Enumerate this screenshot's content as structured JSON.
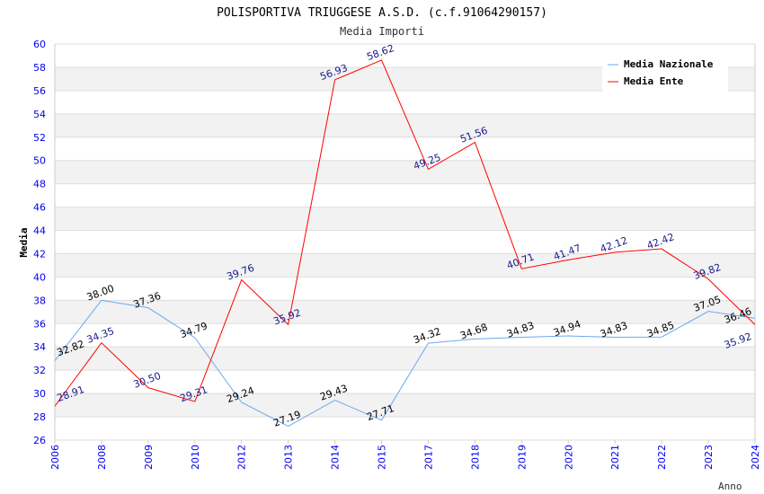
{
  "chart_data": {
    "type": "line",
    "title": "POLISPORTIVA TRIUGGESE A.S.D. (c.f.91064290157)",
    "subtitle": "Media Importi",
    "xlabel": "Anno",
    "ylabel": "Media",
    "ylim": [
      26,
      60
    ],
    "yticks": [
      "26",
      "28",
      "30",
      "32",
      "34",
      "36",
      "38",
      "40",
      "42",
      "44",
      "46",
      "48",
      "50",
      "52",
      "54",
      "56",
      "58",
      "60"
    ],
    "categories": [
      "2006",
      "2008",
      "2009",
      "2010",
      "2012",
      "2013",
      "2014",
      "2015",
      "2017",
      "2018",
      "2019",
      "2020",
      "2021",
      "2022",
      "2023",
      "2024"
    ],
    "legend_position": "top-right",
    "series": [
      {
        "name": "Media Nazionale",
        "color": "#6aaaf0",
        "label_color": "#000000",
        "values": [
          32.82,
          38.0,
          37.36,
          34.79,
          29.24,
          27.19,
          29.43,
          27.71,
          34.32,
          34.68,
          34.83,
          34.94,
          34.83,
          34.85,
          37.05,
          36.46
        ],
        "labels": [
          "32.82",
          "38.00",
          "37.36",
          "34.79",
          "29.24",
          "27.19",
          "29.43",
          "27.71",
          "34.32",
          "34.68",
          "34.83",
          "34.94",
          "34.83",
          "34.85",
          "37.05",
          "36.46"
        ]
      },
      {
        "name": "Media Ente",
        "color": "#ff0000",
        "label_color": "#1a1a8c",
        "values": [
          28.91,
          34.35,
          30.5,
          29.31,
          39.76,
          35.92,
          56.93,
          58.62,
          49.25,
          51.56,
          40.71,
          41.47,
          42.12,
          42.42,
          39.82,
          35.92
        ],
        "labels": [
          "28.91",
          "34.35",
          "30.50",
          "29.31",
          "39.76",
          "35.92",
          "56.93",
          "58.62",
          "49.25",
          "51.56",
          "40.71",
          "41.47",
          "42.12",
          "42.42",
          "39.82",
          "35.92"
        ]
      }
    ]
  }
}
